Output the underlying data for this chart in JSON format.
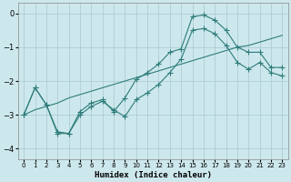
{
  "xlabel": "Humidex (Indice chaleur)",
  "bg_color": "#cde8ed",
  "grid_color": "#aecdd4",
  "line_color": "#2e7d7a",
  "xlim": [
    -0.5,
    23.5
  ],
  "ylim": [
    -4.3,
    0.3
  ],
  "xticks": [
    0,
    1,
    2,
    3,
    4,
    5,
    6,
    7,
    8,
    9,
    10,
    11,
    12,
    13,
    14,
    15,
    16,
    17,
    18,
    19,
    20,
    21,
    22,
    23
  ],
  "yticks": [
    0,
    -1,
    -2,
    -3,
    -4
  ],
  "line1_x": [
    0,
    1,
    2,
    3,
    4,
    5,
    6,
    7,
    8,
    9,
    10,
    11,
    12,
    13,
    14,
    15,
    16,
    17,
    18,
    19,
    20,
    21,
    22,
    23
  ],
  "line1_y": [
    -3.0,
    -2.2,
    -2.7,
    -3.55,
    -3.55,
    -3.0,
    -2.75,
    -2.6,
    -2.85,
    -3.05,
    -2.55,
    -2.35,
    -2.1,
    -1.75,
    -1.35,
    -0.5,
    -0.45,
    -0.6,
    -0.95,
    -1.45,
    -1.65,
    -1.45,
    -1.75,
    -1.85
  ],
  "line2_x": [
    0,
    1,
    2,
    3,
    4,
    5,
    6,
    7,
    8,
    9,
    10,
    11,
    12,
    13,
    14,
    15,
    16,
    17,
    18,
    19,
    20,
    21,
    22,
    23
  ],
  "line2_y": [
    -3.0,
    -2.2,
    -2.7,
    -3.5,
    -3.55,
    -2.9,
    -2.65,
    -2.55,
    -2.9,
    -2.5,
    -1.95,
    -1.75,
    -1.5,
    -1.15,
    -1.05,
    -0.1,
    -0.05,
    -0.2,
    -0.5,
    -1.0,
    -1.15,
    -1.15,
    -1.6,
    -1.6
  ],
  "line3_x": [
    0,
    1,
    2,
    3,
    4,
    5,
    6,
    7,
    8,
    9,
    10,
    11,
    12,
    13,
    14,
    15,
    16,
    17,
    18,
    19,
    20,
    21,
    22,
    23
  ],
  "line3_y": [
    -3.0,
    -2.85,
    -2.75,
    -2.65,
    -2.5,
    -2.4,
    -2.3,
    -2.2,
    -2.1,
    -2.0,
    -1.9,
    -1.8,
    -1.7,
    -1.6,
    -1.5,
    -1.4,
    -1.3,
    -1.2,
    -1.1,
    -1.0,
    -0.95,
    -0.85,
    -0.75,
    -0.65
  ]
}
